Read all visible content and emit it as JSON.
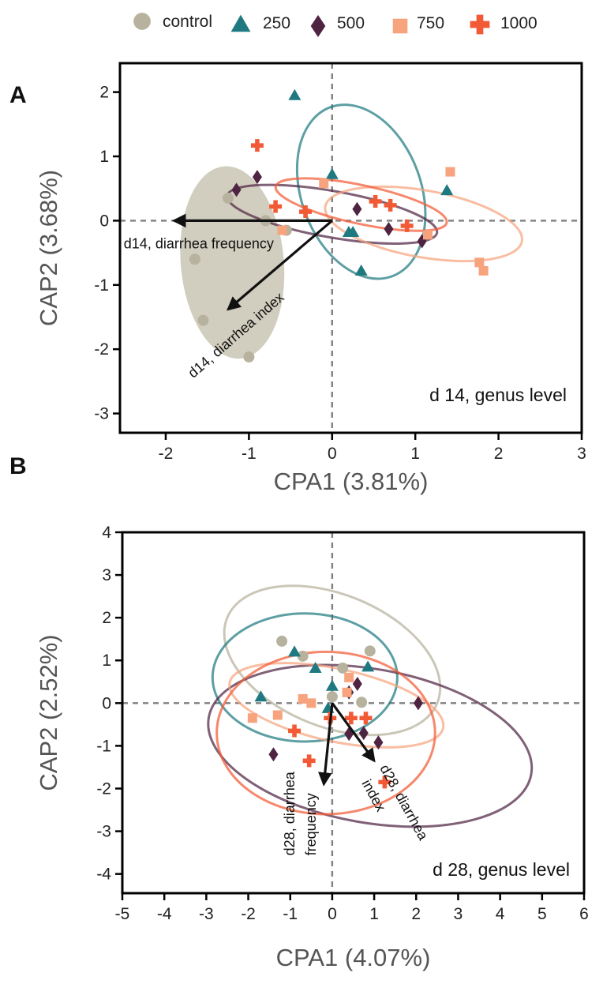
{
  "legend": [
    {
      "key": "control",
      "label": "control",
      "shape": "circle",
      "color": "#b7b29d"
    },
    {
      "key": "250",
      "label": "250",
      "shape": "triangle",
      "color": "#1e7a80"
    },
    {
      "key": "500",
      "label": "500",
      "shape": "diamond",
      "color": "#4f2442"
    },
    {
      "key": "750",
      "label": "750",
      "shape": "square",
      "color": "#f7a47e"
    },
    {
      "key": "1000",
      "label": "1000",
      "shape": "cross",
      "color": "#f25a35"
    }
  ],
  "chart_data": [
    {
      "type": "scatter",
      "panel": "A",
      "note": "d 14, genus level",
      "xlabel": "CPA1 (3.81%)",
      "ylabel": "CAP2 (3.68%)",
      "xlim": [
        -2.55,
        3.0
      ],
      "ylim": [
        -3.3,
        2.45
      ],
      "xticks": [
        -2,
        -1,
        0,
        1,
        2,
        3
      ],
      "yticks": [
        -3,
        -2,
        -1,
        0,
        1,
        2
      ],
      "series": [
        {
          "key": "control",
          "points": [
            [
              -1.25,
              0.35
            ],
            [
              -0.8,
              0.0
            ],
            [
              -1.65,
              -0.6
            ],
            [
              -1.55,
              -1.55
            ],
            [
              -1.0,
              -2.12
            ],
            [
              -0.55,
              -0.15
            ]
          ]
        },
        {
          "key": "250",
          "points": [
            [
              -0.45,
              1.95
            ],
            [
              -0.0,
              0.72
            ],
            [
              0.2,
              -0.18
            ],
            [
              0.25,
              -0.18
            ],
            [
              0.35,
              -0.78
            ],
            [
              1.38,
              0.47
            ]
          ]
        },
        {
          "key": "500",
          "points": [
            [
              -1.15,
              0.48
            ],
            [
              -0.9,
              0.68
            ],
            [
              0.3,
              0.18
            ],
            [
              0.68,
              -0.13
            ],
            [
              1.08,
              -0.32
            ]
          ]
        },
        {
          "key": "750",
          "points": [
            [
              -0.1,
              0.58
            ],
            [
              1.15,
              -0.22
            ],
            [
              1.42,
              0.76
            ],
            [
              1.77,
              -0.65
            ],
            [
              1.82,
              -0.78
            ],
            [
              -0.6,
              -0.15
            ]
          ]
        },
        {
          "key": "1000",
          "points": [
            [
              -0.9,
              1.17
            ],
            [
              -0.68,
              0.22
            ],
            [
              -0.32,
              0.14
            ],
            [
              0.52,
              0.3
            ],
            [
              0.7,
              0.24
            ],
            [
              0.9,
              -0.08
            ]
          ]
        }
      ],
      "ellipses": [
        {
          "key": "control",
          "center": [
            -1.2,
            -0.65
          ],
          "radii": [
            0.62,
            1.5
          ],
          "angle": 5,
          "filled": true
        },
        {
          "key": "250",
          "center": [
            0.35,
            0.45
          ],
          "radii": [
            0.72,
            1.4
          ],
          "angle": 20,
          "filled": false
        },
        {
          "key": "500",
          "center": [
            0.0,
            0.1
          ],
          "radii": [
            1.28,
            0.36
          ],
          "angle": -10,
          "filled": false
        },
        {
          "key": "750",
          "center": [
            1.1,
            -0.05
          ],
          "radii": [
            1.2,
            0.52
          ],
          "angle": -10,
          "filled": false
        },
        {
          "key": "1000",
          "center": [
            0.35,
            0.25
          ],
          "radii": [
            1.05,
            0.3
          ],
          "angle": -12,
          "filled": false
        }
      ],
      "arrows": [
        {
          "label": "d14, diarrhea frequency",
          "to": [
            -1.9,
            0.0
          ]
        },
        {
          "label": "d14, diarrhea index",
          "to": [
            -1.25,
            -1.38
          ]
        }
      ]
    },
    {
      "type": "scatter",
      "panel": "B",
      "note": "d 28, genus level",
      "xlabel": "CPA1 (4.07%)",
      "ylabel": "CAP2 (2.52%)",
      "xlim": [
        -5.0,
        6.0
      ],
      "ylim": [
        -4.45,
        4.0
      ],
      "xticks": [
        -5,
        -4,
        -3,
        -2,
        -1,
        0,
        1,
        2,
        3,
        4,
        5,
        6
      ],
      "yticks": [
        -4,
        -3,
        -2,
        -1,
        0,
        1,
        2,
        3,
        4
      ],
      "series": [
        {
          "key": "control",
          "points": [
            [
              -1.2,
              1.45
            ],
            [
              -0.7,
              1.1
            ],
            [
              0.25,
              0.82
            ],
            [
              0.0,
              0.15
            ],
            [
              0.7,
              0.02
            ],
            [
              0.9,
              1.22
            ]
          ]
        },
        {
          "key": "250",
          "points": [
            [
              -1.7,
              0.15
            ],
            [
              -0.9,
              1.2
            ],
            [
              -0.4,
              0.82
            ],
            [
              0.0,
              0.4
            ],
            [
              -0.1,
              -0.12
            ],
            [
              0.85,
              0.85
            ]
          ]
        },
        {
          "key": "500",
          "points": [
            [
              -1.4,
              -1.2
            ],
            [
              0.4,
              0.25
            ],
            [
              0.6,
              0.45
            ],
            [
              0.4,
              -0.72
            ],
            [
              0.75,
              -0.7
            ],
            [
              1.1,
              -0.92
            ],
            [
              2.05,
              0.0
            ]
          ]
        },
        {
          "key": "750",
          "points": [
            [
              -1.9,
              -0.35
            ],
            [
              -1.3,
              -0.28
            ],
            [
              -0.7,
              0.1
            ],
            [
              -0.5,
              0.0
            ],
            [
              0.35,
              0.25
            ],
            [
              0.4,
              0.6
            ]
          ]
        },
        {
          "key": "1000",
          "points": [
            [
              -0.9,
              -0.65
            ],
            [
              -0.55,
              -1.35
            ],
            [
              -0.05,
              -0.35
            ],
            [
              0.45,
              -0.35
            ],
            [
              0.8,
              -0.35
            ],
            [
              1.25,
              -1.85
            ]
          ]
        }
      ],
      "ellipses": [
        {
          "key": "control",
          "center": [
            0.0,
            1.0
          ],
          "radii": [
            2.7,
            1.55
          ],
          "angle": -22,
          "filled": false
        },
        {
          "key": "250",
          "center": [
            -0.65,
            0.6
          ],
          "radii": [
            2.2,
            1.5
          ],
          "angle": 0,
          "filled": false
        },
        {
          "key": "500",
          "center": [
            0.9,
            -1.0
          ],
          "radii": [
            3.9,
            1.8
          ],
          "angle": -10,
          "filled": false
        },
        {
          "key": "750",
          "center": [
            0.1,
            -0.05
          ],
          "radii": [
            2.6,
            0.85
          ],
          "angle": -12,
          "filled": false
        },
        {
          "key": "1000",
          "center": [
            -0.15,
            -0.7
          ],
          "radii": [
            2.6,
            1.9
          ],
          "angle": 0,
          "filled": false
        }
      ],
      "arrows": [
        {
          "label": "d28, diarrhea frequency",
          "to": [
            -0.2,
            -1.9
          ]
        },
        {
          "label": "d28, diarrhea index",
          "to": [
            1.0,
            -1.35
          ]
        }
      ]
    }
  ]
}
